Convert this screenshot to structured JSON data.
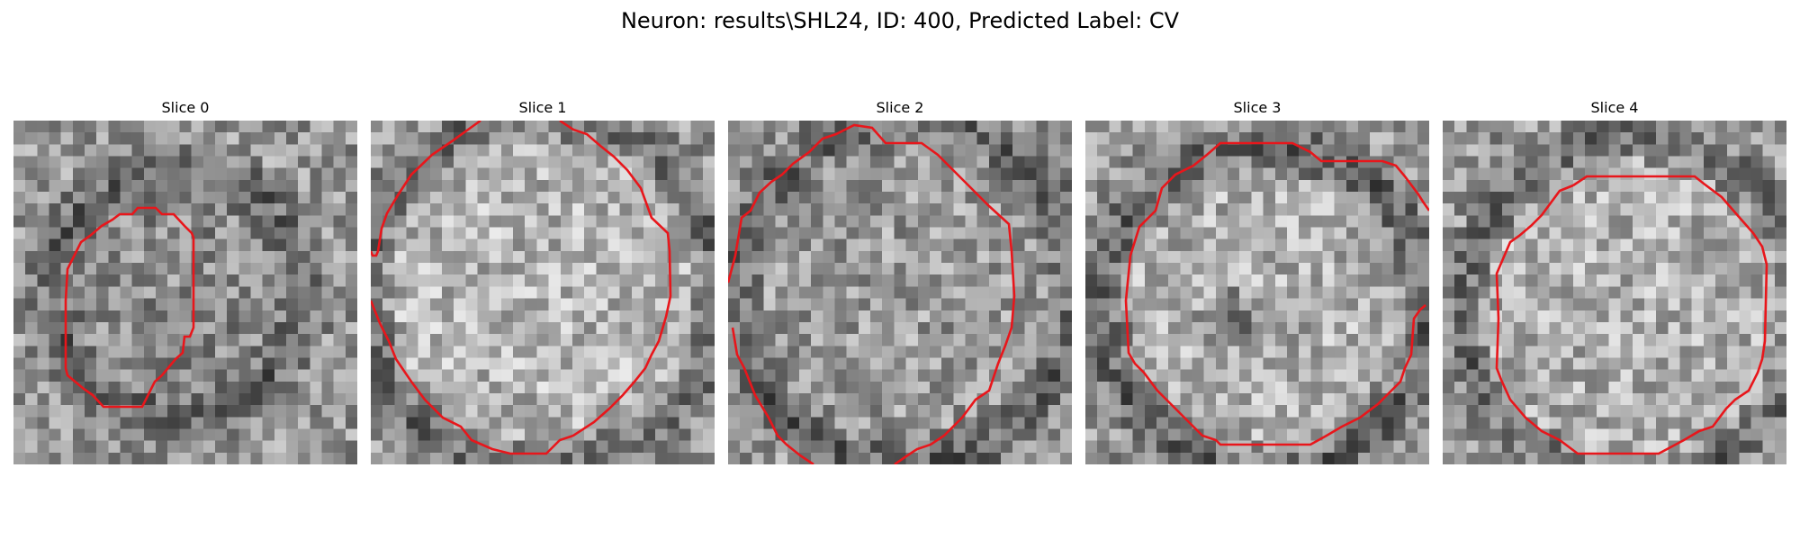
{
  "figure": {
    "title": "Neuron: results\\SHL24, ID: 400, Predicted Label: CV"
  },
  "slices": [
    {
      "label": "Slice 0"
    },
    {
      "label": "Slice 1"
    },
    {
      "label": "Slice 2"
    },
    {
      "label": "Slice 3"
    },
    {
      "label": "Slice 4"
    }
  ],
  "colors": {
    "contour": "#e8161b",
    "background": "#ffffff"
  }
}
